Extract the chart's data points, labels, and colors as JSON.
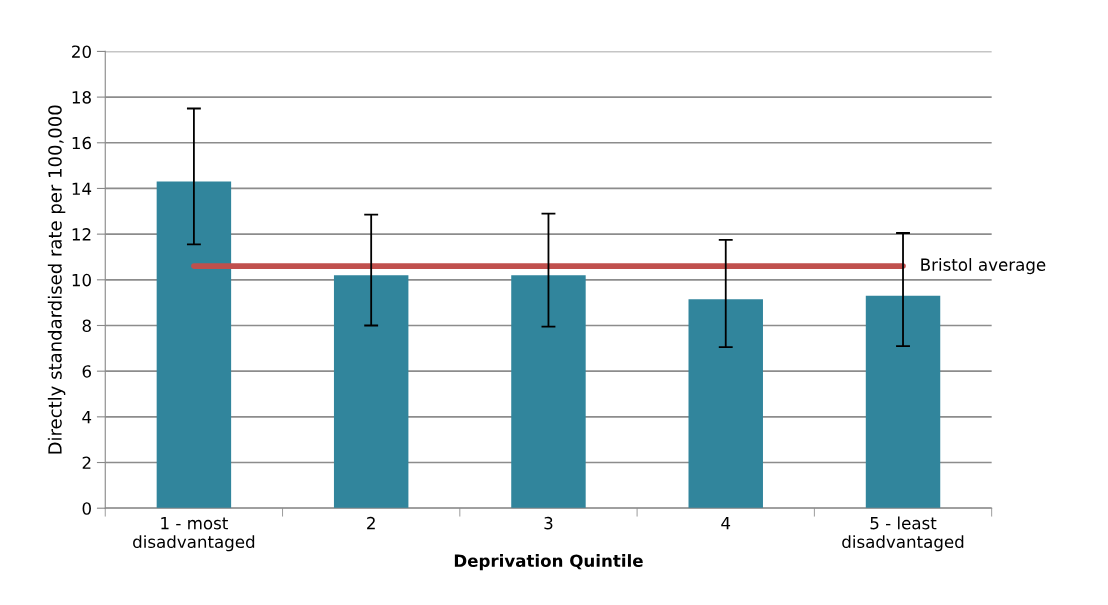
{
  "chart_data": {
    "type": "bar",
    "xlabel": "Deprivation Quintile",
    "ylabel": "Directly standardised rate per 100,000",
    "categories": [
      "1 - most\ndisadvantaged",
      "2",
      "3",
      "4",
      "5 - least\ndisadvantaged"
    ],
    "values": [
      14.3,
      10.2,
      10.2,
      9.15,
      9.3
    ],
    "errors": [
      [
        11.55,
        17.5
      ],
      [
        8.0,
        12.85
      ],
      [
        7.95,
        12.9
      ],
      [
        7.05,
        11.75
      ],
      [
        7.1,
        12.05
      ]
    ],
    "color": "#31859c",
    "ylim": [
      0,
      20
    ],
    "yticks": [
      0,
      2,
      4,
      6,
      8,
      10,
      12,
      14,
      16,
      18,
      20
    ],
    "grid": "y",
    "ref_lines": [
      {
        "axis": "y",
        "value": 10.6,
        "label": "Bristol average",
        "color": "#c0504d"
      }
    ]
  }
}
